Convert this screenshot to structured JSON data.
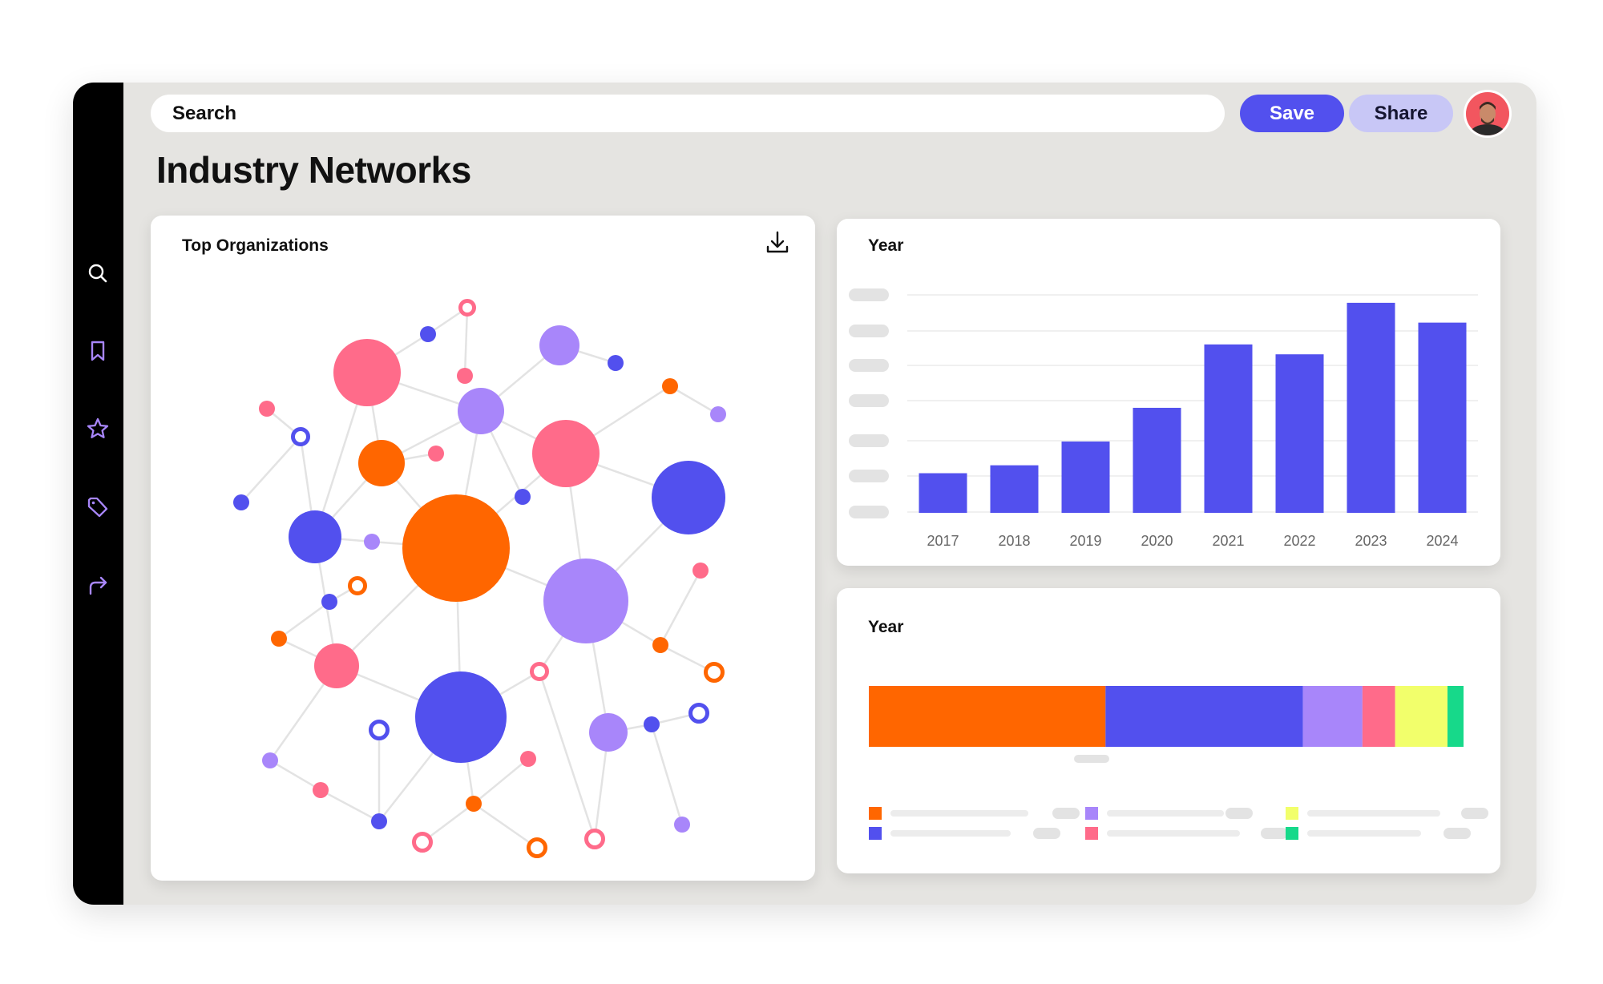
{
  "search": {
    "placeholder": "Search"
  },
  "header": {
    "save_label": "Save",
    "share_label": "Share"
  },
  "page": {
    "title": "Industry Networks"
  },
  "sidebar": {
    "icons": [
      "search-icon",
      "bookmark-icon",
      "star-icon",
      "tag-icon",
      "share-forward-icon"
    ]
  },
  "colors": {
    "accent": "#5250ee",
    "accent_light": "#c8c7f6",
    "orange": "#ff6600",
    "pink": "#ff6b8a",
    "purple": "#a886fa",
    "yellow": "#f2ff6b",
    "green": "#17d98a"
  },
  "network_card": {
    "title": "Top Organizations"
  },
  "chart_data": [
    {
      "type": "bar",
      "title": "Year",
      "categories": [
        "2017",
        "2018",
        "2019",
        "2020",
        "2021",
        "2022",
        "2023",
        "2024"
      ],
      "values": [
        20,
        24,
        36,
        53,
        85,
        80,
        106,
        96
      ],
      "y_tick_labels_hidden": true,
      "grid": true,
      "color": "#5250ee"
    },
    {
      "type": "bar",
      "subtype": "stacked-horizontal",
      "title": "Year",
      "series": [
        {
          "values": [
            39.8
          ],
          "color": "#ff6600"
        },
        {
          "values": [
            33.2
          ],
          "color": "#5250ee"
        },
        {
          "values": [
            10.0
          ],
          "color": "#a886fa"
        },
        {
          "values": [
            5.5
          ],
          "color": "#ff6b8a"
        },
        {
          "values": [
            8.8
          ],
          "color": "#f2ff6b"
        },
        {
          "values": [
            2.7
          ],
          "color": "#17d98a"
        }
      ],
      "legend": "bottom",
      "legend_labels_hidden": true
    }
  ]
}
